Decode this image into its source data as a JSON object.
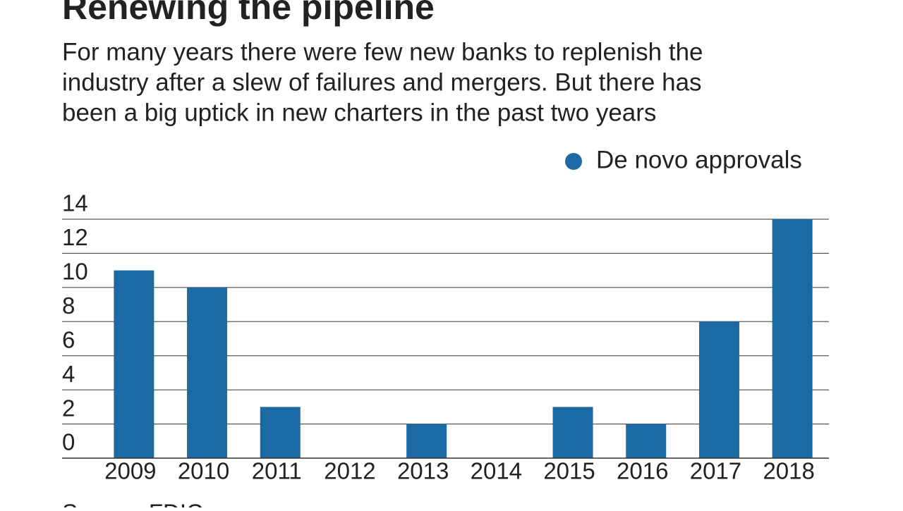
{
  "chart_data": {
    "type": "bar",
    "title": "Renewing the pipeline",
    "subtitle": [
      "For many years there were few new banks to replenish the",
      "industry after a slew of failures and mergers. But there has",
      "been a big uptick in new charters in the past two years"
    ],
    "source": "Source: FDIC",
    "categories": [
      "2009",
      "2010",
      "2011",
      "2012",
      "2013",
      "2014",
      "2015",
      "2016",
      "2017",
      "2018"
    ],
    "series": [
      {
        "name": "De novo approvals",
        "color": "#1c6aa4",
        "values": [
          11,
          10,
          3,
          0,
          2,
          0,
          3,
          2,
          8,
          14
        ]
      }
    ],
    "ylim": [
      0,
      14
    ],
    "yticks": [
      0,
      2,
      4,
      6,
      8,
      10,
      12,
      14
    ],
    "grid": true,
    "legend": "top-right"
  }
}
